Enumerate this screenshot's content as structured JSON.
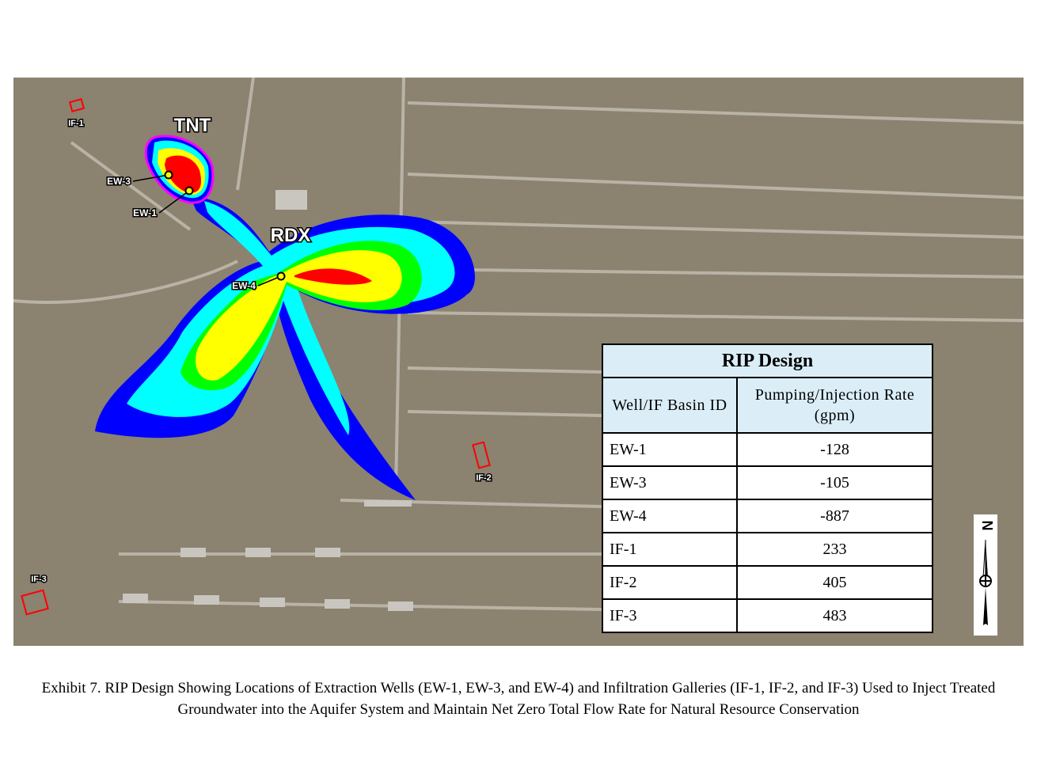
{
  "map": {
    "plumes": [
      "TNT",
      "RDX"
    ],
    "wells": [
      "EW-1",
      "EW-3",
      "EW-4"
    ],
    "basins": [
      "IF-1",
      "IF-2",
      "IF-3"
    ]
  },
  "compass": "N",
  "table": {
    "title": "RIP Design",
    "headers": [
      "Well/IF Basin ID",
      "Pumping/Injection Rate (gpm)"
    ],
    "rows": [
      [
        "EW-1",
        -128
      ],
      [
        "EW-3",
        -105
      ],
      [
        "EW-4",
        -887
      ],
      [
        "IF-1",
        233
      ],
      [
        "IF-2",
        405
      ],
      [
        "IF-3",
        483
      ]
    ]
  },
  "caption": "Exhibit 7. RIP Design Showing Locations of Extraction Wells (EW-1, EW-3, and EW-4) and Infiltration Galleries (IF-1, IF-2, and IF-3) Used to Inject Treated Groundwater into the Aquifer System and Maintain Net Zero Total Flow Rate for Natural Resource Conservation"
}
